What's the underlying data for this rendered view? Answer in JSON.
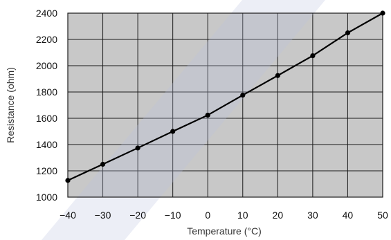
{
  "chart_data": {
    "type": "line",
    "title": "",
    "xlabel": "Temperature (°C)",
    "ylabel": "Resistance (ohm)",
    "xlim": [
      -40,
      50
    ],
    "ylim": [
      1000,
      2400
    ],
    "xticks": [
      -40,
      -30,
      -20,
      -10,
      0,
      10,
      20,
      30,
      40,
      50
    ],
    "yticks": [
      1000,
      1200,
      1400,
      1600,
      1800,
      2000,
      2200,
      2400
    ],
    "xtick_labels": [
      "−40",
      "−30",
      "−20",
      "−10",
      "0",
      "10",
      "20",
      "30",
      "40",
      "50"
    ],
    "ytick_labels": [
      "1000",
      "1200",
      "1400",
      "1600",
      "1800",
      "2000",
      "2200",
      "2400"
    ],
    "grid": true,
    "series": [
      {
        "x": [
          -40,
          -30,
          -20,
          -10,
          0,
          10,
          20,
          30,
          40,
          50
        ],
        "y": [
          1127,
          1250,
          1374,
          1500,
          1624,
          1776,
          1925,
          2076,
          2250,
          2400
        ]
      }
    ],
    "colors": {
      "plot_background": "#c8c8c8",
      "grid": "#1a1a1a",
      "line": "#000000",
      "marker": "#000000",
      "watermark": "#b9c3e0"
    }
  }
}
